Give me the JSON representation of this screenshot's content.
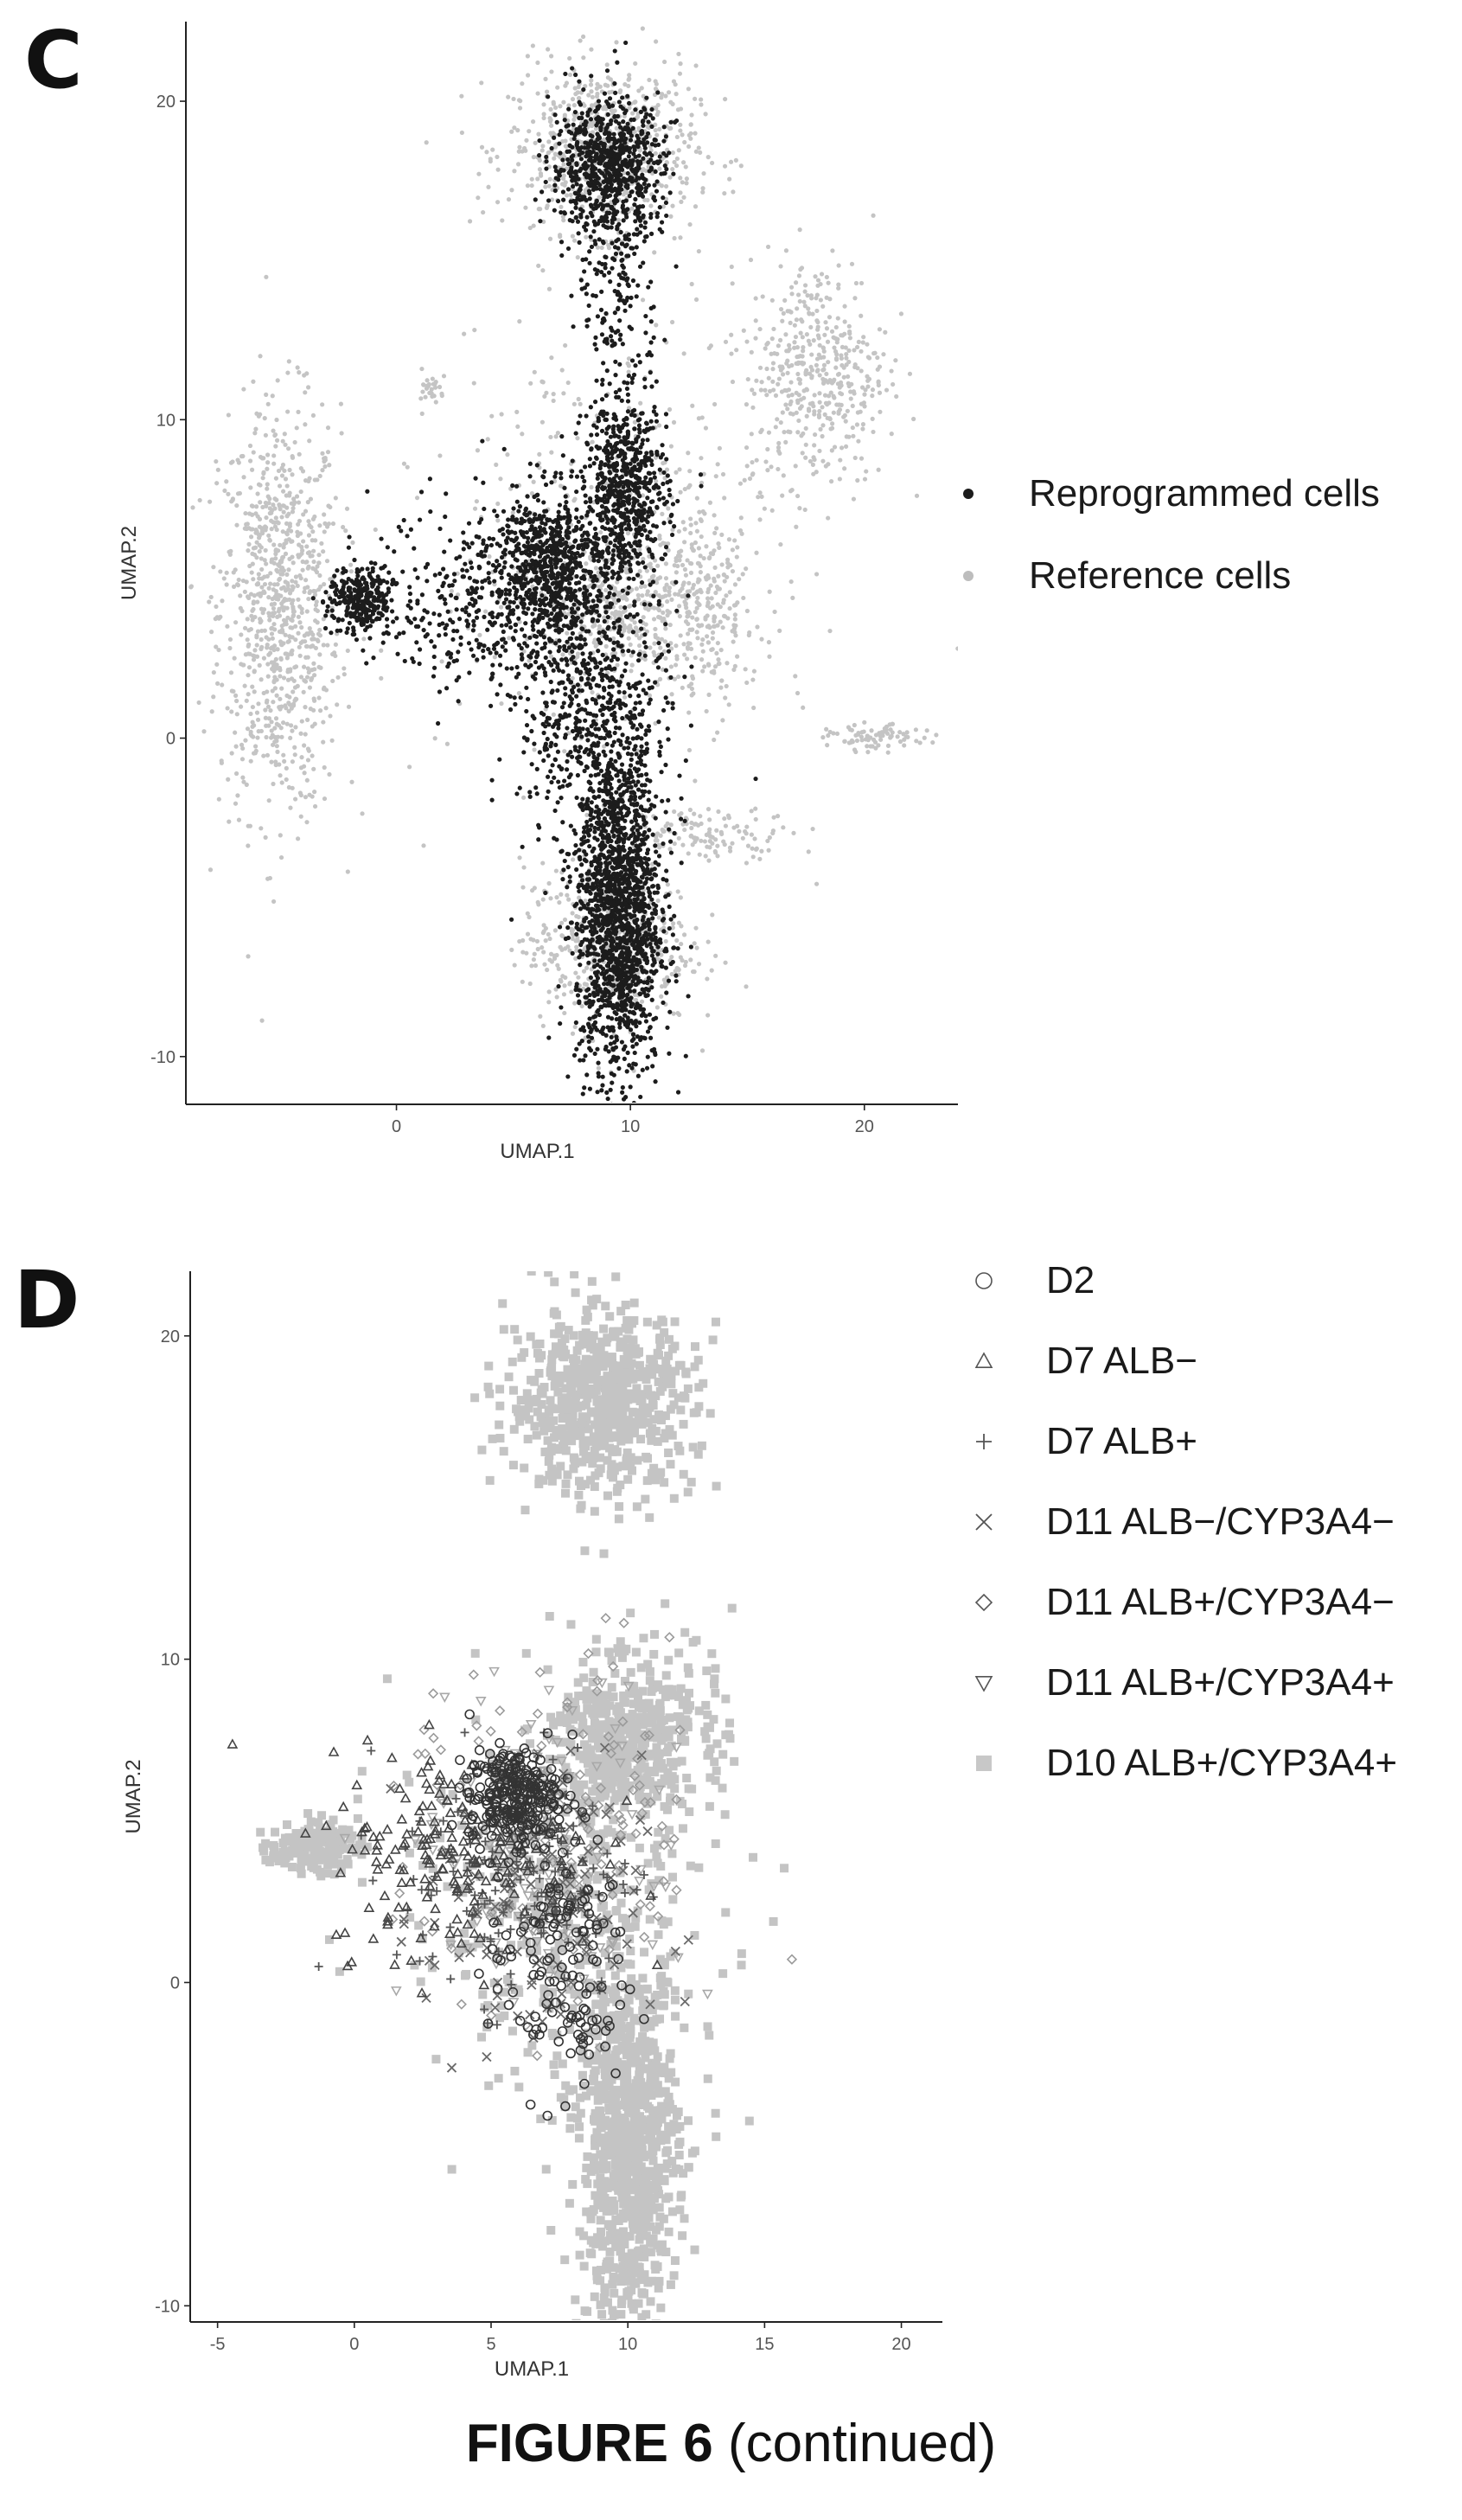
{
  "panels": {
    "c": {
      "letter": "C"
    },
    "d": {
      "letter": "D"
    }
  },
  "figure": {
    "number": "FIGURE 6",
    "suffix": "(continued)"
  },
  "colors": {
    "dark": "#1c1c1c",
    "reference": "#c4c4c4",
    "mid": "#444444"
  },
  "chart_data": [
    {
      "type": "scatter",
      "panel": "C",
      "title": "",
      "xlabel": "UMAP.1",
      "ylabel": "UMAP.2",
      "xlim": [
        -9,
        24
      ],
      "ylim": [
        -11.5,
        22.5
      ],
      "xticks": [
        0,
        10,
        20
      ],
      "yticks": [
        -10,
        0,
        10,
        20
      ],
      "grid": false,
      "legend_position": "right",
      "series": [
        {
          "name": "Reference cells",
          "symbol": "dot",
          "color": "#c4c4c4",
          "clusters": [
            {
              "cx": -5,
              "cy": 4,
              "sx": 1.3,
              "sy": 3.2,
              "n": 900
            },
            {
              "cx": 8.8,
              "cy": 18.5,
              "sx": 2,
              "sy": 1.3,
              "n": 700
            },
            {
              "cx": 18,
              "cy": 11.5,
              "sx": 1.5,
              "sy": 1.8,
              "n": 450
            },
            {
              "cx": 9,
              "cy": -6.5,
              "sx": 1.8,
              "sy": 1.3,
              "n": 500
            },
            {
              "cx": 9.3,
              "cy": 4,
              "sx": 1.3,
              "sy": 1,
              "n": 250
            },
            {
              "cx": 13,
              "cy": 4,
              "sx": 1.3,
              "sy": 1.5,
              "n": 280
            },
            {
              "cx": 9,
              "cy": 6,
              "sx": 3.5,
              "sy": 3.5,
              "n": 450
            },
            {
              "cx": 20.5,
              "cy": 0,
              "sx": 1,
              "sy": 0.2,
              "n": 80
            },
            {
              "cx": 13.5,
              "cy": -3,
              "sx": 1.8,
              "sy": 0.4,
              "n": 120
            },
            {
              "cx": 1.5,
              "cy": 11,
              "sx": 0.3,
              "sy": 0.2,
              "n": 25
            }
          ]
        },
        {
          "name": "Reprogrammed cells",
          "symbol": "dot",
          "color": "#1c1c1c",
          "clusters": [
            {
              "cx": 9,
              "cy": 18,
              "sx": 1.2,
              "sy": 1,
              "n": 700
            },
            {
              "cx": 9.5,
              "cy": 15,
              "sx": 0.9,
              "sy": 2.5,
              "n": 260
            },
            {
              "cx": 9.8,
              "cy": 7.8,
              "sx": 0.9,
              "sy": 1.4,
              "n": 650
            },
            {
              "cx": 6.5,
              "cy": 5.5,
              "sx": 1.2,
              "sy": 1.2,
              "n": 650
            },
            {
              "cx": 4,
              "cy": 4.3,
              "sx": 2.5,
              "sy": 1.5,
              "n": 450
            },
            {
              "cx": -1.5,
              "cy": 4.3,
              "sx": 0.7,
              "sy": 0.5,
              "n": 300
            },
            {
              "cx": 9.5,
              "cy": -5.5,
              "sx": 0.9,
              "sy": 2.6,
              "n": 1700
            },
            {
              "cx": 8.5,
              "cy": 1,
              "sx": 1.6,
              "sy": 2.5,
              "n": 700
            }
          ]
        }
      ]
    },
    {
      "type": "scatter",
      "panel": "D",
      "title": "",
      "xlabel": "UMAP.1",
      "ylabel": "UMAP.2",
      "xlim": [
        -6,
        21.5
      ],
      "ylim": [
        -10.5,
        22
      ],
      "xticks": [
        -5,
        0,
        5,
        10,
        15,
        20
      ],
      "yticks": [
        -10,
        0,
        10,
        20
      ],
      "grid": false,
      "legend_position": "right",
      "series": [
        {
          "name": "D10 ALB+/CYP3A4+",
          "symbol": "square-x",
          "color": "#c4c4c4",
          "clusters": [
            {
              "cx": 9,
              "cy": 18,
              "sx": 1.7,
              "sy": 1.4,
              "n": 650
            },
            {
              "cx": 10,
              "cy": -5,
              "sx": 0.9,
              "sy": 2.8,
              "n": 900
            },
            {
              "cx": 9.5,
              "cy": 7.5,
              "sx": 1,
              "sy": 1.2,
              "n": 300
            },
            {
              "cx": 7.5,
              "cy": 2.5,
              "sx": 3,
              "sy": 3,
              "n": 350
            },
            {
              "cx": -1.5,
              "cy": 4.2,
              "sx": 0.8,
              "sy": 0.4,
              "n": 150
            },
            {
              "cx": 11.5,
              "cy": 8,
              "sx": 1.2,
              "sy": 1.5,
              "n": 150
            }
          ]
        },
        {
          "name": "D11 ALB+/CYP3A4+",
          "symbol": "triangle-down",
          "color": "#a8a8a8",
          "clusters": [
            {
              "cx": 7,
              "cy": 4,
              "sx": 2.5,
              "sy": 2.5,
              "n": 120
            }
          ]
        },
        {
          "name": "D11 ALB+/CYP3A4−",
          "symbol": "diamond",
          "color": "#9a9a9a",
          "clusters": [
            {
              "cx": 7.5,
              "cy": 4.5,
              "sx": 2.8,
              "sy": 2.8,
              "n": 140
            }
          ]
        },
        {
          "name": "D11 ALB−/CYP3A4−",
          "symbol": "x",
          "color": "#6a6a6a",
          "clusters": [
            {
              "cx": 6.5,
              "cy": 2,
              "sx": 2,
              "sy": 2.5,
              "n": 120
            }
          ]
        },
        {
          "name": "D7 ALB+",
          "symbol": "plus",
          "color": "#555555",
          "clusters": [
            {
              "cx": 6,
              "cy": 3.5,
              "sx": 2.2,
              "sy": 2,
              "n": 160
            }
          ]
        },
        {
          "name": "D7 ALB−",
          "symbol": "triangle-up",
          "color": "#444444",
          "clusters": [
            {
              "cx": 4,
              "cy": 4,
              "sx": 2.5,
              "sy": 1.6,
              "n": 200
            }
          ]
        },
        {
          "name": "D2",
          "symbol": "circle",
          "color": "#333333",
          "clusters": [
            {
              "cx": 5.8,
              "cy": 5.8,
              "sx": 0.8,
              "sy": 0.7,
              "n": 260
            },
            {
              "cx": 7.5,
              "cy": 0.5,
              "sx": 1.3,
              "sy": 2,
              "n": 140
            }
          ]
        }
      ],
      "legend_order": [
        "D2",
        "D7 ALB−",
        "D7 ALB+",
        "D11 ALB−/CYP3A4−",
        "D11 ALB+/CYP3A4−",
        "D11 ALB+/CYP3A4+",
        "D10 ALB+/CYP3A4+"
      ]
    }
  ]
}
